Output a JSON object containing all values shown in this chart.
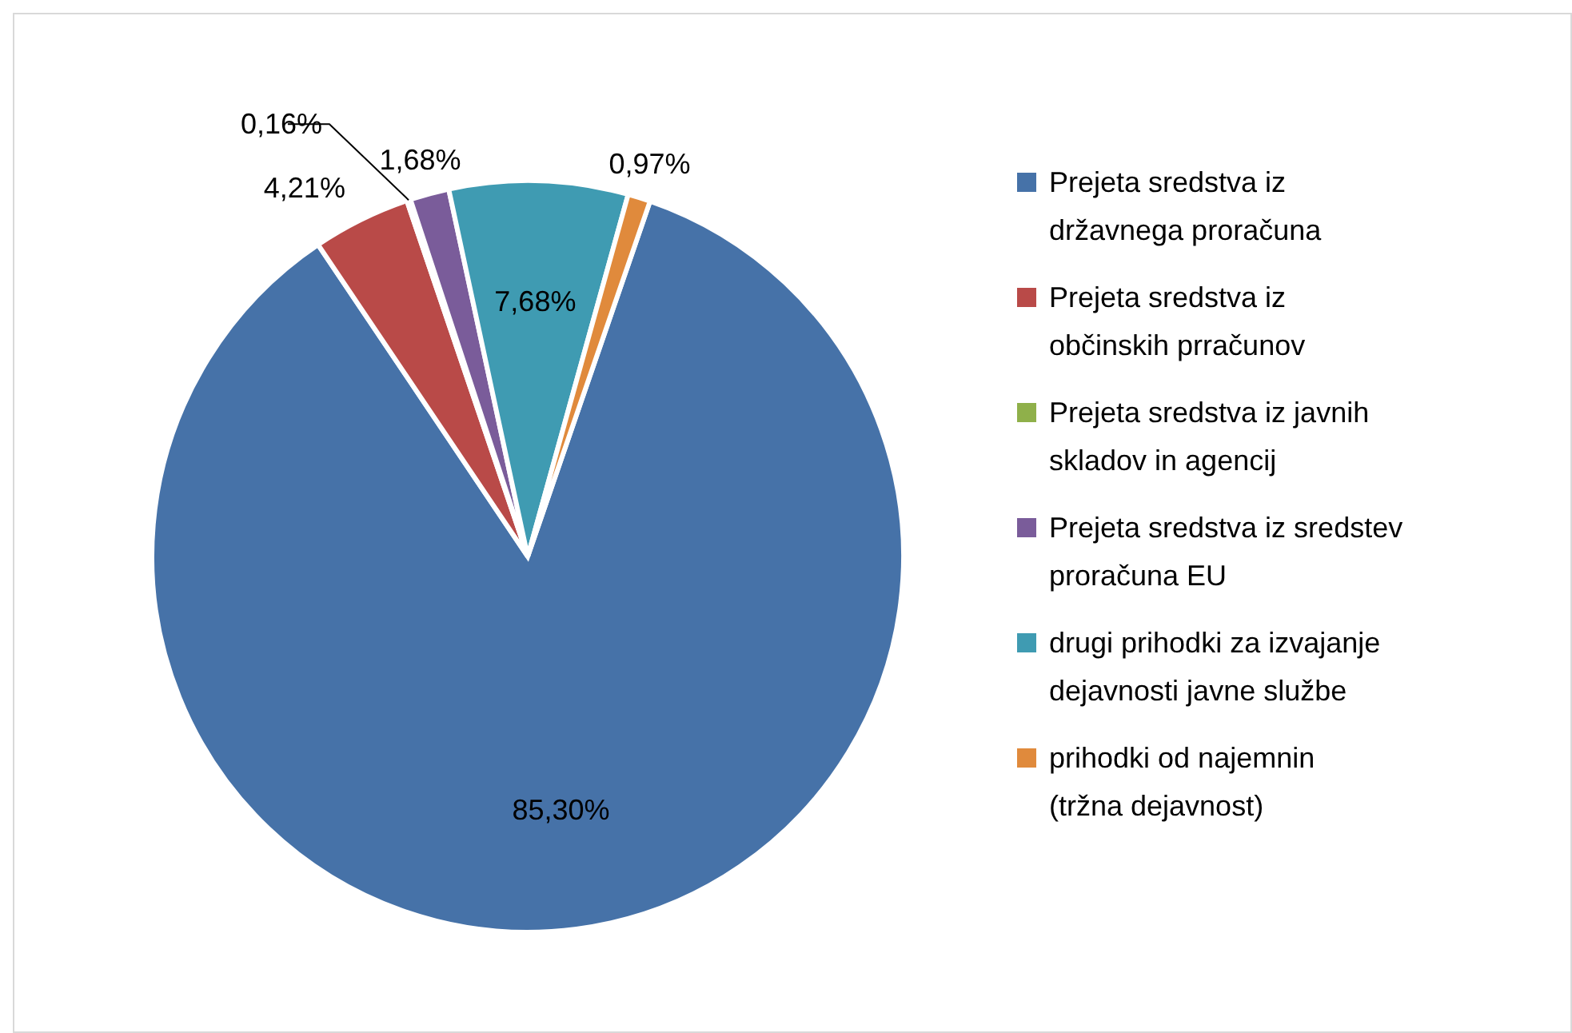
{
  "chart_data": {
    "type": "pie",
    "categories": [
      "Prejeta sredstva iz državnega proračuna",
      "Prejeta sredstva iz občinskih prračunov",
      "Prejeta sredstva iz javnih skladov in agencij",
      "Prejeta sredstva iz sredstev proračuna EU",
      "drugi prihodki za izvajanje dejavnosti javne službe",
      "prihodki od najemnin (tržna dejavnost)"
    ],
    "values": [
      85.3,
      4.21,
      0.16,
      1.68,
      7.68,
      0.97
    ],
    "value_labels": [
      "85,30%",
      "4,21%",
      "0,16%",
      "1,68%",
      "7,68%",
      "0,97%"
    ],
    "colors": [
      "#4672a8",
      "#b94a48",
      "#8fb04a",
      "#7a5c9a",
      "#3f9bb2",
      "#e08a3c"
    ],
    "legend": "right"
  }
}
